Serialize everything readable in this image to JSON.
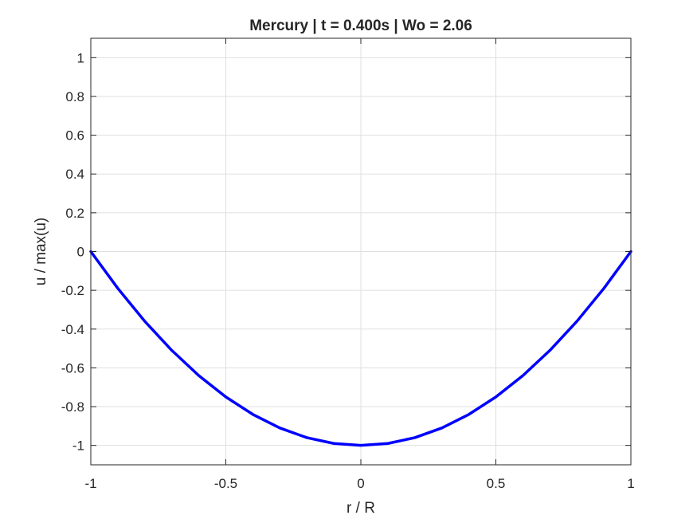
{
  "chart_data": {
    "type": "line",
    "title": "Mercury | t = 0.400s | Wo = 2.06",
    "xlabel": "r / R",
    "ylabel": "u / max(u)",
    "xlim": [
      -1,
      1
    ],
    "ylim": [
      -1.1,
      1.1
    ],
    "xticks": [
      -1,
      -0.5,
      0,
      0.5,
      1
    ],
    "xtick_labels": [
      "-1",
      "-0.5",
      "0",
      "0.5",
      "1"
    ],
    "yticks": [
      -1,
      -0.8,
      -0.6,
      -0.4,
      -0.2,
      0,
      0.2,
      0.4,
      0.6,
      0.8,
      1
    ],
    "ytick_labels": [
      "-1",
      "-0.8",
      "-0.6",
      "-0.4",
      "-0.2",
      "0",
      "0.2",
      "0.4",
      "0.6",
      "0.8",
      "1"
    ],
    "grid": true,
    "series": [
      {
        "color": "#0000ff",
        "x": [
          -1,
          -0.9,
          -0.8,
          -0.7,
          -0.6,
          -0.5,
          -0.4,
          -0.3,
          -0.2,
          -0.1,
          0,
          0.1,
          0.2,
          0.3,
          0.4,
          0.5,
          0.6,
          0.7,
          0.8,
          0.9,
          1
        ],
        "y": [
          0,
          -0.19,
          -0.36,
          -0.51,
          -0.64,
          -0.75,
          -0.84,
          -0.91,
          -0.96,
          -0.99,
          -1,
          -0.99,
          -0.96,
          -0.91,
          -0.84,
          -0.75,
          -0.64,
          -0.51,
          -0.36,
          -0.19,
          0
        ]
      }
    ]
  }
}
